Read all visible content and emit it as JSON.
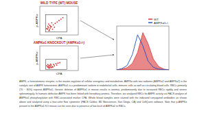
{
  "chart_data": [
    {
      "type": "scatter",
      "title": "WILD TYPE (WT) MOUSE",
      "x_label": "CPA",
      "y_label": "p-AMPKα",
      "x": [
        20,
        22,
        25,
        18,
        28,
        30,
        35,
        24,
        40,
        45,
        50,
        55,
        27,
        33,
        21,
        60,
        26,
        38,
        23,
        31
      ],
      "values": [
        20,
        25,
        18,
        22,
        30,
        28,
        35,
        15,
        40,
        45,
        50,
        55,
        24,
        20,
        30,
        60,
        33,
        27,
        38,
        42
      ],
      "xlim": [
        0,
        100
      ],
      "ylim": [
        0,
        100
      ],
      "color": "#d62728",
      "marker": "dot",
      "tick_labels": false,
      "gate": {
        "x": [
          15,
          70
        ],
        "y": [
          10,
          70
        ]
      }
    },
    {
      "type": "scatter",
      "title": "AMPKα1 KNOCKOUT (AMPKα1-/-)",
      "x_label": "CPA",
      "y_label": "p-AMPKα",
      "x": [
        20,
        23,
        26,
        18,
        29,
        32,
        36,
        24,
        42,
        47,
        52,
        27,
        34,
        21,
        25,
        30,
        22,
        38,
        28,
        44
      ],
      "values": [
        15,
        18,
        12,
        20,
        22,
        16,
        25,
        10,
        28,
        30,
        32,
        17,
        14,
        24,
        21,
        12,
        13,
        19,
        26,
        22
      ],
      "xlim": [
        0,
        100
      ],
      "ylim": [
        0,
        100
      ],
      "color": "#d62728",
      "marker": "dot",
      "tick_labels": false,
      "gate": {
        "x": [
          15,
          70
        ],
        "y": [
          5,
          45
        ]
      }
    },
    {
      "type": "line",
      "x": [
        0,
        10,
        20,
        30,
        40,
        50,
        60,
        70,
        80,
        90,
        100
      ],
      "series": [
        {
          "name": "WT",
          "color": "#d62728",
          "type": "area",
          "values": [
            0,
            2,
            5,
            15,
            40,
            85,
            60,
            25,
            8,
            2,
            0
          ]
        },
        {
          "name": "AMPKα1-/-",
          "color": "#1f4fbf",
          "type": "line",
          "values": [
            0,
            3,
            10,
            35,
            80,
            55,
            20,
            6,
            2,
            1,
            0
          ]
        }
      ],
      "xlim": [
        0,
        100
      ],
      "ylim": [
        0,
        100
      ],
      "legend": "top-right",
      "tick_labels": false
    }
  ],
  "caption": "AMPK, a heterotrimeric enzyme, is the master-regulator of cellular energetics and metabolism. AMPKα with two isoforms (AMPKα1 and AMPKα2) is the catalytic unit of AMPK heterotrimer. AMPKα1 is a predominant isoform in endothelial cells, immune cells as well as circulating blood cells. RBCs primarily (70 ~ 80%) express AMPKα1. Genetic deletion of AMPKα1 in mouse results in anemia, predominantly due to increased RBCs rigidity and severe splenomegaly. In humans defective AMPK has been linked with hereditary anemia. Therefore, we analyzed RBCs for AMPK activity via FACS analysis of AMPKα1 phosphorylation with RBC-associated marker CPA. Whole blood samples were stained with the indicated conjugated antibodies as shown above and analyzed using a four-color flow cytometer (FACS Calibur, BD Biosciences, San Diego, CA) and CellQuest software. Note that p-AMPKα present in the AMPKα1 KO mouse can be seen due to presence of low level of AMPKα2 in RBCs."
}
